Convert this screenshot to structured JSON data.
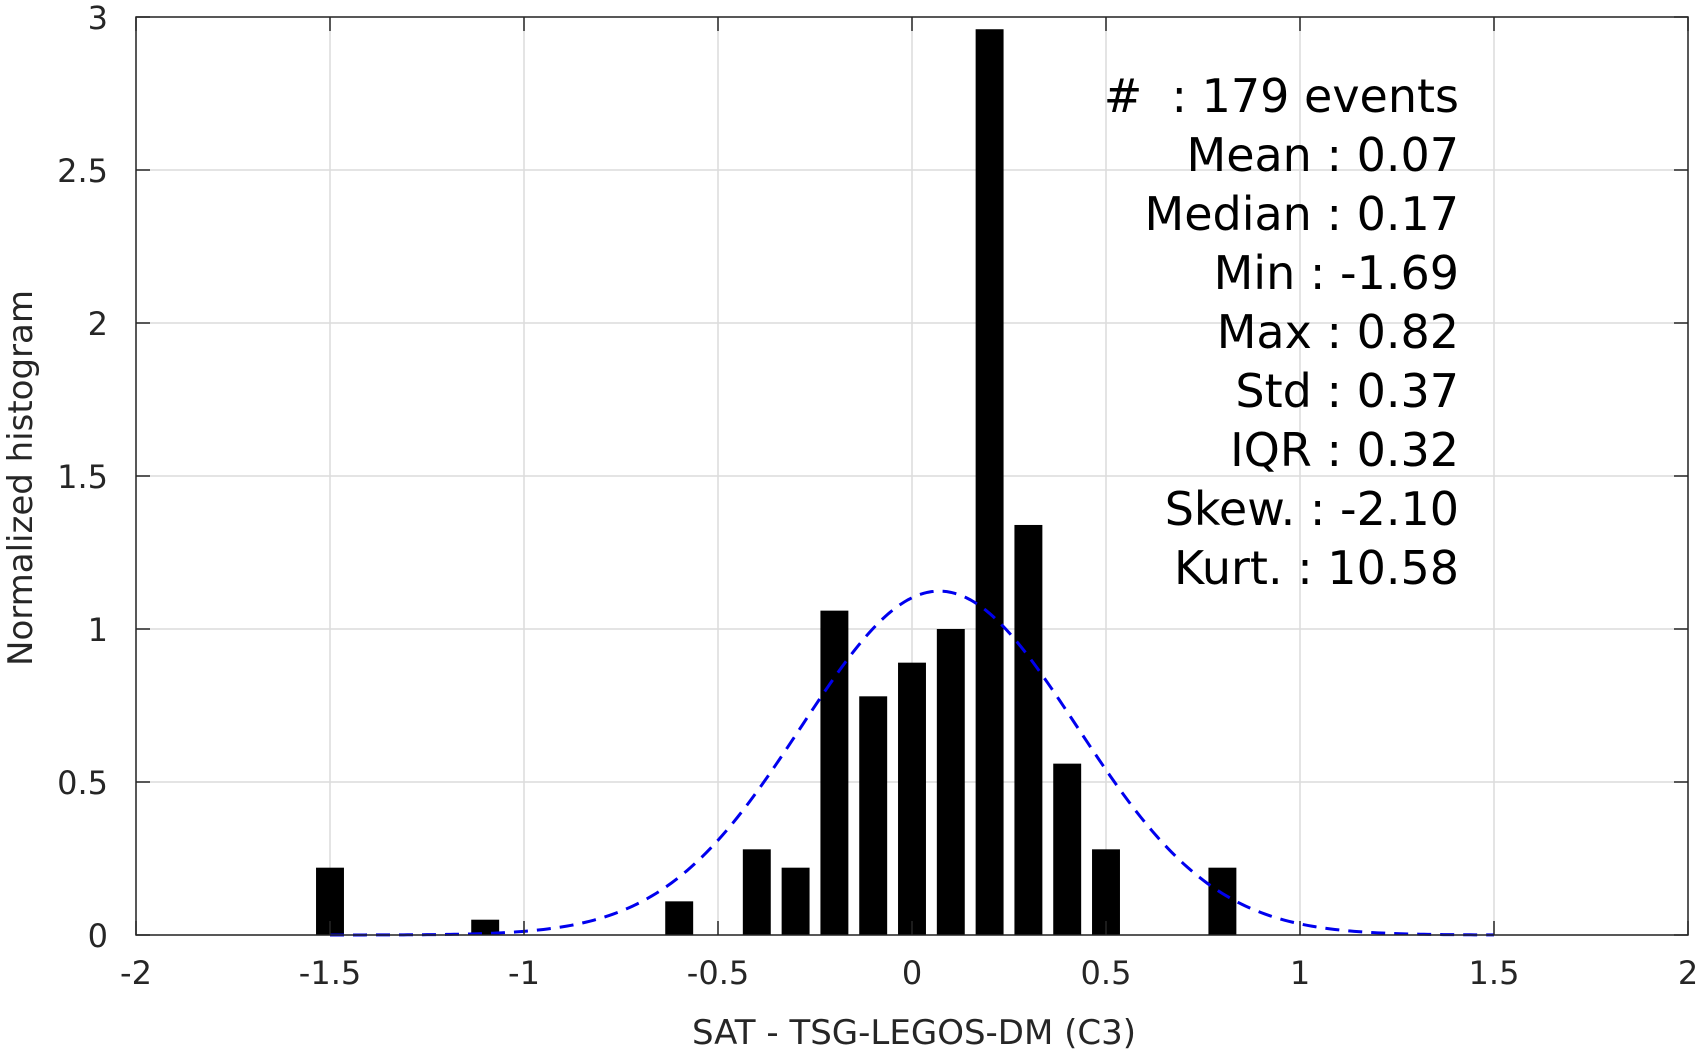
{
  "chart_data": {
    "type": "bar",
    "xlabel": "SAT - TSG-LEGOS-DM (C3)",
    "ylabel": "Normalized histogram",
    "xlim": [
      -2,
      2
    ],
    "ylim": [
      0,
      3
    ],
    "xticks": [
      -2,
      -1.5,
      -1,
      -0.5,
      0,
      0.5,
      1,
      1.5,
      2
    ],
    "xtick_labels": [
      "-2",
      "-1.5",
      "-1",
      "-0.5",
      "0",
      "0.5",
      "1",
      "1.5",
      "2"
    ],
    "yticks": [
      0,
      0.5,
      1,
      1.5,
      2,
      2.5,
      3
    ],
    "ytick_labels": [
      "0",
      "0.5",
      "1",
      "1.5",
      "2",
      "2.5",
      "3"
    ],
    "grid": true,
    "bin_width": 0.1,
    "bars": [
      {
        "x": -1.5,
        "value": 0.22
      },
      {
        "x": -1.1,
        "value": 0.05
      },
      {
        "x": -0.6,
        "value": 0.11
      },
      {
        "x": -0.4,
        "value": 0.28
      },
      {
        "x": -0.3,
        "value": 0.22
      },
      {
        "x": -0.2,
        "value": 1.06
      },
      {
        "x": -0.1,
        "value": 0.78
      },
      {
        "x": 0.0,
        "value": 0.89
      },
      {
        "x": 0.1,
        "value": 1.0
      },
      {
        "x": 0.2,
        "value": 2.96
      },
      {
        "x": 0.3,
        "value": 1.34
      },
      {
        "x": 0.4,
        "value": 0.56
      },
      {
        "x": 0.5,
        "value": 0.28
      },
      {
        "x": 0.8,
        "value": 0.22
      }
    ],
    "fit_curve": {
      "style": "dashed",
      "color": "#0000ee",
      "mean": 0.07,
      "std": 0.355,
      "x_range": [
        -1.5,
        1.5
      ]
    },
    "annotation_lines": [
      "#  : 179 events",
      "Mean : 0.07",
      "Median : 0.17",
      "Min : -1.69",
      "Max : 0.82",
      "Std : 0.37",
      "IQR : 0.32",
      "Skew. : -2.10",
      "Kurt. : 10.58"
    ],
    "annotation_placement": "top-right"
  }
}
